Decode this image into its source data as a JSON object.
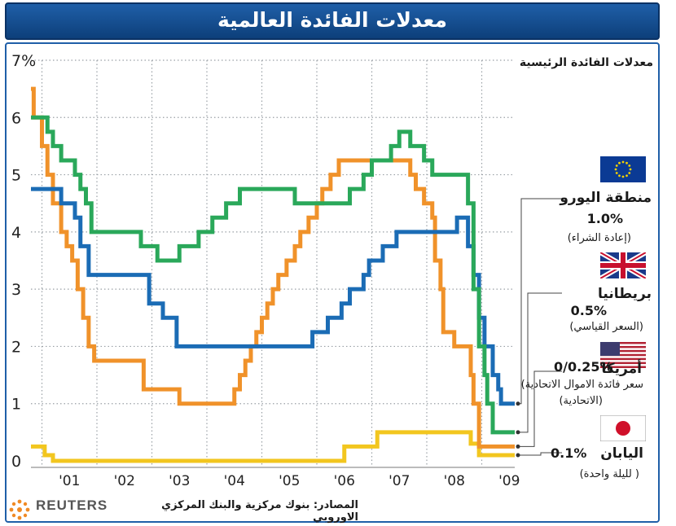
{
  "title": "معدلات الفائدة العالمية",
  "chart_data": {
    "type": "line",
    "step": true,
    "title": "معدلات الفائدة العالمية",
    "subtitle": "معدلات الفائدة الرئيسية",
    "ylim": [
      0,
      7
    ],
    "y_ticks": [
      "0",
      "1",
      "2",
      "3",
      "4",
      "5",
      "6",
      "7%"
    ],
    "x_ticks": [
      "'01",
      "'02",
      "'03",
      "'04",
      "'05",
      "'06",
      "'07",
      "'08",
      "'09"
    ],
    "xlim": [
      2000.8,
      2009.6
    ],
    "grid": true,
    "series": [
      {
        "name": "منطقة اليورو",
        "color": "#1b6cb5",
        "end_value": 1.0,
        "points": [
          [
            2000.8,
            4.75
          ],
          [
            2001.35,
            4.5
          ],
          [
            2001.6,
            4.25
          ],
          [
            2001.7,
            3.75
          ],
          [
            2001.85,
            3.25
          ],
          [
            2002.95,
            2.75
          ],
          [
            2003.2,
            2.5
          ],
          [
            2003.45,
            2.0
          ],
          [
            2005.92,
            2.25
          ],
          [
            2006.2,
            2.5
          ],
          [
            2006.45,
            2.75
          ],
          [
            2006.6,
            3.0
          ],
          [
            2006.85,
            3.25
          ],
          [
            2006.95,
            3.5
          ],
          [
            2007.2,
            3.75
          ],
          [
            2007.45,
            4.0
          ],
          [
            2008.55,
            4.25
          ],
          [
            2008.75,
            3.75
          ],
          [
            2008.85,
            3.25
          ],
          [
            2008.95,
            2.5
          ],
          [
            2009.05,
            2.0
          ],
          [
            2009.2,
            1.5
          ],
          [
            2009.3,
            1.25
          ],
          [
            2009.35,
            1.0
          ],
          [
            2009.6,
            1.0
          ]
        ]
      },
      {
        "name": "بريطانيا",
        "color": "#2aa85a",
        "end_value": 0.5,
        "points": [
          [
            2000.8,
            6.0
          ],
          [
            2001.1,
            5.75
          ],
          [
            2001.2,
            5.5
          ],
          [
            2001.35,
            5.25
          ],
          [
            2001.6,
            5.0
          ],
          [
            2001.7,
            4.75
          ],
          [
            2001.8,
            4.5
          ],
          [
            2001.9,
            4.0
          ],
          [
            2002.8,
            3.75
          ],
          [
            2003.1,
            3.5
          ],
          [
            2003.5,
            3.75
          ],
          [
            2003.85,
            4.0
          ],
          [
            2004.1,
            4.25
          ],
          [
            2004.35,
            4.5
          ],
          [
            2004.6,
            4.75
          ],
          [
            2005.6,
            4.5
          ],
          [
            2006.6,
            4.75
          ],
          [
            2006.85,
            5.0
          ],
          [
            2007.0,
            5.25
          ],
          [
            2007.35,
            5.5
          ],
          [
            2007.5,
            5.75
          ],
          [
            2007.7,
            5.5
          ],
          [
            2007.95,
            5.25
          ],
          [
            2008.1,
            5.0
          ],
          [
            2008.35,
            5.0
          ],
          [
            2008.75,
            4.5
          ],
          [
            2008.85,
            3.0
          ],
          [
            2008.95,
            2.0
          ],
          [
            2009.05,
            1.5
          ],
          [
            2009.1,
            1.0
          ],
          [
            2009.2,
            0.5
          ],
          [
            2009.6,
            0.5
          ]
        ]
      },
      {
        "name": "أمريكا",
        "color": "#f0922a",
        "end_value": 0.25,
        "points": [
          [
            2000.8,
            6.5
          ],
          [
            2000.85,
            6.0
          ],
          [
            2001.0,
            5.5
          ],
          [
            2001.1,
            5.0
          ],
          [
            2001.2,
            4.5
          ],
          [
            2001.35,
            4.0
          ],
          [
            2001.45,
            3.75
          ],
          [
            2001.55,
            3.5
          ],
          [
            2001.65,
            3.0
          ],
          [
            2001.75,
            2.5
          ],
          [
            2001.85,
            2.0
          ],
          [
            2001.95,
            1.75
          ],
          [
            2002.85,
            1.25
          ],
          [
            2003.5,
            1.0
          ],
          [
            2004.5,
            1.25
          ],
          [
            2004.6,
            1.5
          ],
          [
            2004.7,
            1.75
          ],
          [
            2004.8,
            2.0
          ],
          [
            2004.9,
            2.25
          ],
          [
            2005.0,
            2.5
          ],
          [
            2005.1,
            2.75
          ],
          [
            2005.2,
            3.0
          ],
          [
            2005.3,
            3.25
          ],
          [
            2005.45,
            3.5
          ],
          [
            2005.6,
            3.75
          ],
          [
            2005.7,
            4.0
          ],
          [
            2005.85,
            4.25
          ],
          [
            2006.0,
            4.5
          ],
          [
            2006.1,
            4.75
          ],
          [
            2006.25,
            5.0
          ],
          [
            2006.4,
            5.25
          ],
          [
            2007.7,
            5.0
          ],
          [
            2007.8,
            4.75
          ],
          [
            2007.95,
            4.5
          ],
          [
            2008.1,
            4.25
          ],
          [
            2008.15,
            3.5
          ],
          [
            2008.25,
            3.0
          ],
          [
            2008.3,
            2.25
          ],
          [
            2008.5,
            2.0
          ],
          [
            2008.8,
            1.5
          ],
          [
            2008.85,
            1.0
          ],
          [
            2008.95,
            0.25
          ],
          [
            2009.6,
            0.25
          ]
        ]
      },
      {
        "name": "اليابان",
        "color": "#f2c61f",
        "end_value": 0.1,
        "points": [
          [
            2000.8,
            0.25
          ],
          [
            2001.05,
            0.1
          ],
          [
            2001.2,
            0.0
          ],
          [
            2006.5,
            0.25
          ],
          [
            2007.1,
            0.5
          ],
          [
            2008.8,
            0.3
          ],
          [
            2008.95,
            0.1
          ],
          [
            2009.6,
            0.1
          ]
        ]
      }
    ]
  },
  "legend": {
    "header": "معدلات الفائدة الرئيسية",
    "items": [
      {
        "name": "منطقة اليورو",
        "rate": "1.0%",
        "note": "(إعادة الشراء)",
        "flag": "eu-flag-icon"
      },
      {
        "name": "بريطانيا",
        "rate": "0.5%",
        "note": "(السعر القياسي)",
        "flag": "uk-flag-icon"
      },
      {
        "name": "أمريكا",
        "rate": "0/0.25%",
        "note": "سعر فائدة الاموال الاتحادية)",
        "note2": "(الاتحادية)",
        "flag": "us-flag-icon"
      },
      {
        "name": "اليابان",
        "rate": "0.1%",
        "note": "( لليلة واحدة)",
        "flag": "japan-flag-icon"
      }
    ]
  },
  "footer": {
    "brand": "REUTERS",
    "source": "المصادر: بنوك مركزية والبنك المركزي الاوروبي"
  }
}
